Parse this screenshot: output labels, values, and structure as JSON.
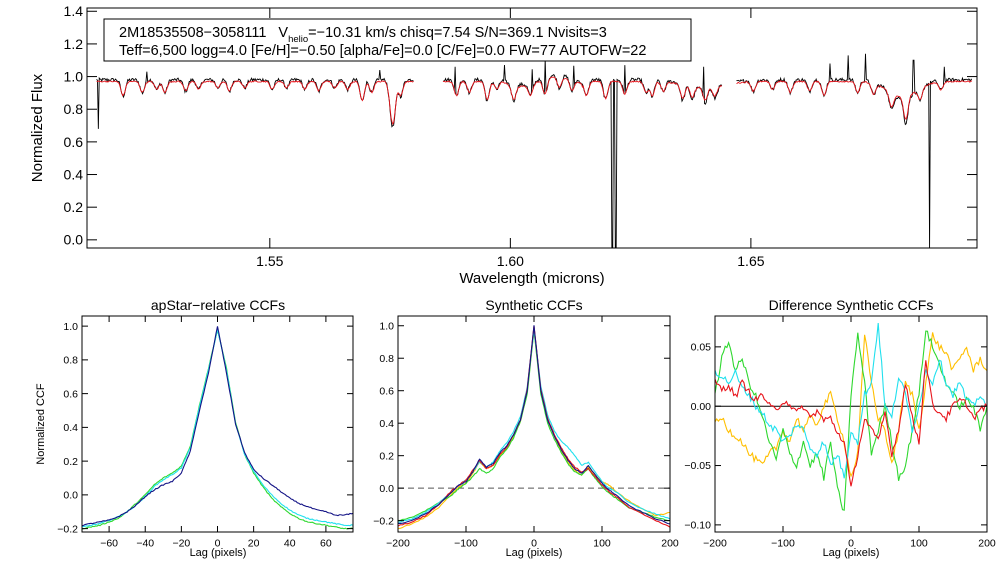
{
  "colors": {
    "black": "#000000",
    "red": "#e8141b",
    "navy": "#141486",
    "cyan": "#20e0ee",
    "green": "#2fd82f",
    "orange": "#ffbf00",
    "ref": "#000000"
  },
  "chart_data": [
    {
      "type": "line",
      "title": "",
      "xlabel": "Wavelength (microns)",
      "ylabel": "Normalized Flux",
      "xlim": [
        1.512,
        1.697
      ],
      "ylim": [
        -0.05,
        1.42
      ],
      "xticks": [
        1.55,
        1.6,
        1.65
      ],
      "xtick_labels": [
        "1.55",
        "1.60",
        "1.65"
      ],
      "yticks": [
        0.0,
        0.2,
        0.4,
        0.6,
        0.8,
        1.0,
        1.2,
        1.4
      ],
      "ytick_labels": [
        "0.0",
        "0.2",
        "0.4",
        "0.6",
        "0.8",
        "1.0",
        "1.2",
        "1.4"
      ],
      "annotation": {
        "star_id": "2M18535508−3058111",
        "v_label": "V",
        "v_sub": "helio",
        "rest_line1": "=−10.31 km/s  chisq=7.54  S/N=369.1  Nvisits=3",
        "line2": "Teff=6,500 logg=4.0 [Fe/H]=−0.50 [alpha/Fe]=0.0 [C/Fe]=0.0 FW=77 AUTOFW=22"
      },
      "segments": [
        {
          "start": 1.514,
          "end": 1.58
        },
        {
          "start": 1.586,
          "end": 1.644
        },
        {
          "start": 1.647,
          "end": 1.696
        }
      ],
      "series": [
        {
          "name": "observed spectrum",
          "color": "black",
          "continuum": 0.98
        },
        {
          "name": "synthetic model",
          "color": "red",
          "continuum": 0.97
        }
      ],
      "absorption_lines": [
        [
          1.5195,
          0.88
        ],
        [
          1.5235,
          0.9
        ],
        [
          1.5265,
          0.92
        ],
        [
          1.5282,
          0.9
        ],
        [
          1.5325,
          0.91
        ],
        [
          1.5352,
          0.92
        ],
        [
          1.5392,
          0.93
        ],
        [
          1.5416,
          0.91
        ],
        [
          1.5448,
          0.93
        ],
        [
          1.5505,
          0.92
        ],
        [
          1.5535,
          0.93
        ],
        [
          1.5573,
          0.92
        ],
        [
          1.5602,
          0.91
        ],
        [
          1.5635,
          0.93
        ],
        [
          1.5662,
          0.92
        ],
        [
          1.5692,
          0.85
        ],
        [
          1.5712,
          0.9
        ],
        [
          1.5752,
          0.82
        ],
        [
          1.5758,
          0.78
        ],
        [
          1.5772,
          0.88
        ],
        [
          1.5888,
          0.88
        ],
        [
          1.5915,
          0.9
        ],
        [
          1.5952,
          0.85
        ],
        [
          1.5972,
          0.92
        ],
        [
          1.6007,
          0.88
        ],
        [
          1.6042,
          0.9
        ],
        [
          1.6072,
          0.87
        ],
        [
          1.6102,
          0.9
        ],
        [
          1.6128,
          0.9
        ],
        [
          1.6158,
          0.88
        ],
        [
          1.6198,
          0.86
        ],
        [
          1.6238,
          0.89
        ],
        [
          1.6282,
          0.9
        ],
        [
          1.6295,
          0.88
        ],
        [
          1.6318,
          0.91
        ],
        [
          1.6358,
          0.88
        ],
        [
          1.6378,
          0.9
        ],
        [
          1.6405,
          0.89
        ],
        [
          1.6425,
          0.91
        ],
        [
          1.6505,
          0.91
        ],
        [
          1.6545,
          0.92
        ],
        [
          1.6582,
          0.9
        ],
        [
          1.6622,
          0.91
        ],
        [
          1.6652,
          0.88
        ],
        [
          1.6722,
          0.9
        ],
        [
          1.6755,
          0.9
        ],
        [
          1.6792,
          0.88
        ],
        [
          1.6822,
          0.82
        ],
        [
          1.6852,
          0.9
        ],
        [
          1.6895,
          0.92
        ]
      ],
      "broad_features": [
        [
          1.6405,
          0.93,
          0.004
        ],
        [
          1.6815,
          0.87,
          0.003
        ]
      ],
      "spikes": [
        [
          1.5885,
          1.06
        ],
        [
          1.5988,
          1.08
        ],
        [
          1.6045,
          1.06
        ],
        [
          1.6072,
          1.09
        ],
        [
          1.6132,
          1.06
        ],
        [
          1.6238,
          1.07
        ],
        [
          1.6402,
          1.06
        ],
        [
          1.6462,
          1.06
        ],
        [
          1.6664,
          1.08
        ],
        [
          1.6702,
          1.13
        ],
        [
          1.6738,
          1.14
        ],
        [
          1.6838,
          1.1
        ],
        [
          1.6902,
          1.06
        ],
        [
          1.5728,
          1.04
        ],
        [
          1.5245,
          1.03
        ]
      ],
      "deep_drops": [
        [
          1.5143,
          0.68
        ],
        [
          1.6212,
          -0.05
        ],
        [
          1.6219,
          -0.05
        ],
        [
          1.6872,
          -0.05
        ]
      ]
    },
    {
      "type": "line",
      "title": "apStar−relative CCFs",
      "xlabel": "Lag (pixels)",
      "ylabel": "Normalized CCF",
      "xlim": [
        -75,
        75
      ],
      "ylim": [
        -0.22,
        1.06
      ],
      "xticks": [
        -60,
        -40,
        -20,
        0,
        20,
        40,
        60
      ],
      "xtick_labels": [
        "−60",
        "−40",
        "−20",
        "0",
        "20",
        "40",
        "60"
      ],
      "yticks": [
        -0.2,
        0.0,
        0.2,
        0.4,
        0.6,
        0.8,
        1.0
      ],
      "ytick_labels": [
        "−0.2",
        "0.0",
        "0.2",
        "0.4",
        "0.6",
        "0.8",
        "1.0"
      ],
      "x": [
        -75,
        -70,
        -65,
        -60,
        -55,
        -50,
        -45,
        -40,
        -35,
        -30,
        -25,
        -20,
        -15,
        -10,
        -5,
        0,
        5,
        10,
        15,
        20,
        25,
        30,
        35,
        40,
        45,
        50,
        55,
        60,
        65,
        70,
        75
      ],
      "series": [
        {
          "name": "navy",
          "color": "navy",
          "values": [
            -0.18,
            -0.17,
            -0.16,
            -0.15,
            -0.13,
            -0.1,
            -0.06,
            -0.01,
            0.03,
            0.06,
            0.08,
            0.13,
            0.26,
            0.5,
            0.72,
            1.0,
            0.72,
            0.42,
            0.25,
            0.15,
            0.1,
            0.06,
            0.02,
            -0.02,
            -0.05,
            -0.07,
            -0.09,
            -0.1,
            -0.12,
            -0.12,
            -0.11
          ]
        },
        {
          "name": "cyan",
          "color": "cyan",
          "values": [
            -0.19,
            -0.18,
            -0.17,
            -0.15,
            -0.13,
            -0.1,
            -0.06,
            -0.01,
            0.05,
            0.09,
            0.12,
            0.16,
            0.28,
            0.52,
            0.74,
            0.98,
            0.74,
            0.42,
            0.24,
            0.14,
            0.06,
            0.0,
            -0.05,
            -0.09,
            -0.12,
            -0.14,
            -0.15,
            -0.16,
            -0.17,
            -0.18,
            -0.18
          ]
        },
        {
          "name": "green",
          "color": "green",
          "values": [
            -0.2,
            -0.19,
            -0.18,
            -0.16,
            -0.14,
            -0.1,
            -0.05,
            0.0,
            0.06,
            0.1,
            0.13,
            0.17,
            0.29,
            0.53,
            0.75,
            0.98,
            0.75,
            0.43,
            0.24,
            0.13,
            0.05,
            -0.02,
            -0.07,
            -0.11,
            -0.14,
            -0.16,
            -0.17,
            -0.18,
            -0.19,
            -0.2,
            -0.2
          ]
        }
      ]
    },
    {
      "type": "line",
      "title": "Synthetic CCFs",
      "xlabel": "Lag (pixels)",
      "ylabel": "",
      "xlim": [
        -200,
        200
      ],
      "ylim": [
        -0.27,
        1.06
      ],
      "xticks": [
        -200,
        -100,
        0,
        100,
        200
      ],
      "xtick_labels": [
        "−200",
        "−100",
        "0",
        "100",
        "200"
      ],
      "yticks": [
        -0.2,
        0.0,
        0.2,
        0.4,
        0.6,
        0.8,
        1.0
      ],
      "ytick_labels": [
        "−0.2",
        "0.0",
        "0.2",
        "0.4",
        "0.6",
        "0.8",
        "1.0"
      ],
      "reference_line": 0.0,
      "x": [
        -200,
        -180,
        -160,
        -140,
        -120,
        -110,
        -100,
        -90,
        -80,
        -70,
        -60,
        -50,
        -40,
        -30,
        -20,
        -10,
        0,
        10,
        20,
        30,
        40,
        50,
        60,
        70,
        80,
        90,
        100,
        110,
        120,
        140,
        160,
        180,
        200
      ],
      "series": [
        {
          "name": "navy",
          "color": "navy",
          "values": [
            -0.22,
            -0.2,
            -0.16,
            -0.1,
            -0.02,
            0.02,
            0.04,
            0.1,
            0.18,
            0.13,
            0.15,
            0.22,
            0.26,
            0.33,
            0.42,
            0.6,
            1.0,
            0.6,
            0.42,
            0.32,
            0.24,
            0.17,
            0.12,
            0.09,
            0.14,
            0.08,
            0.03,
            -0.01,
            -0.04,
            -0.11,
            -0.15,
            -0.19,
            -0.22
          ]
        },
        {
          "name": "red",
          "color": "red",
          "values": [
            -0.23,
            -0.21,
            -0.17,
            -0.1,
            -0.01,
            0.02,
            0.05,
            0.11,
            0.17,
            0.12,
            0.14,
            0.21,
            0.25,
            0.33,
            0.42,
            0.61,
            1.0,
            0.61,
            0.43,
            0.33,
            0.25,
            0.18,
            0.13,
            0.1,
            0.12,
            0.07,
            0.02,
            -0.02,
            -0.05,
            -0.12,
            -0.16,
            -0.2,
            -0.24
          ]
        },
        {
          "name": "cyan",
          "color": "cyan",
          "values": [
            -0.21,
            -0.19,
            -0.15,
            -0.09,
            -0.02,
            0.02,
            0.05,
            0.1,
            0.16,
            0.13,
            0.16,
            0.23,
            0.28,
            0.35,
            0.44,
            0.62,
            0.98,
            0.63,
            0.45,
            0.35,
            0.29,
            0.25,
            0.2,
            0.14,
            0.16,
            0.1,
            0.04,
            0.0,
            -0.02,
            -0.09,
            -0.13,
            -0.16,
            -0.19
          ]
        },
        {
          "name": "green",
          "color": "green",
          "values": [
            -0.2,
            -0.18,
            -0.14,
            -0.09,
            -0.04,
            0.0,
            0.03,
            0.07,
            0.12,
            0.09,
            0.12,
            0.19,
            0.24,
            0.31,
            0.41,
            0.58,
            0.97,
            0.58,
            0.4,
            0.3,
            0.22,
            0.15,
            0.1,
            0.08,
            0.12,
            0.06,
            0.01,
            -0.03,
            -0.06,
            -0.12,
            -0.15,
            -0.18,
            -0.2
          ]
        },
        {
          "name": "orange",
          "color": "orange",
          "values": [
            -0.25,
            -0.22,
            -0.18,
            -0.12,
            -0.03,
            0.01,
            0.03,
            0.09,
            0.16,
            0.12,
            0.14,
            0.2,
            0.25,
            0.32,
            0.41,
            0.59,
            0.99,
            0.6,
            0.42,
            0.32,
            0.23,
            0.16,
            0.11,
            0.08,
            0.13,
            0.08,
            0.04,
            0.02,
            -0.02,
            -0.08,
            -0.13,
            -0.17,
            -0.15
          ]
        }
      ]
    },
    {
      "type": "line",
      "title": "Difference Synthetic CCFs",
      "xlabel": "Lag (pixels)",
      "ylabel": "",
      "xlim": [
        -200,
        200
      ],
      "ylim": [
        -0.106,
        0.076
      ],
      "xticks": [
        -200,
        -100,
        0,
        100,
        200
      ],
      "xtick_labels": [
        "−200",
        "−100",
        "0",
        "100",
        "200"
      ],
      "yticks": [
        -0.1,
        -0.05,
        0.0,
        0.05
      ],
      "ytick_labels": [
        "−0.10",
        "−0.05",
        "0.00",
        "0.05"
      ],
      "reference_line": 0.0,
      "x": [
        -200,
        -190,
        -180,
        -170,
        -160,
        -150,
        -140,
        -130,
        -120,
        -110,
        -100,
        -90,
        -80,
        -70,
        -60,
        -50,
        -40,
        -30,
        -20,
        -10,
        0,
        10,
        20,
        30,
        40,
        50,
        60,
        70,
        80,
        90,
        100,
        110,
        120,
        130,
        140,
        150,
        160,
        170,
        180,
        190,
        200
      ],
      "series": [
        {
          "name": "red",
          "color": "red",
          "values": [
            0.02,
            0.014,
            0.018,
            0.008,
            0.02,
            0.012,
            0.005,
            0.01,
            0.0,
            -0.004,
            0.005,
            0.002,
            -0.006,
            0.0,
            -0.01,
            -0.004,
            -0.012,
            -0.01,
            -0.022,
            -0.03,
            -0.07,
            -0.04,
            -0.01,
            -0.02,
            -0.03,
            -0.005,
            -0.04,
            -0.02,
            0.02,
            -0.01,
            -0.03,
            0.04,
            0.0,
            -0.005,
            -0.01,
            0.0,
            0.005,
            0.002,
            -0.01,
            -0.003,
            0.0
          ]
        },
        {
          "name": "cyan",
          "color": "cyan",
          "values": [
            0.03,
            0.025,
            0.02,
            0.028,
            0.015,
            0.01,
            0.0,
            -0.006,
            -0.016,
            -0.02,
            -0.03,
            -0.025,
            -0.015,
            -0.02,
            -0.035,
            -0.04,
            -0.03,
            -0.05,
            -0.04,
            -0.06,
            -0.02,
            -0.03,
            0.01,
            0.02,
            0.07,
            0.0,
            -0.01,
            0.025,
            0.01,
            -0.02,
            0.0,
            0.03,
            0.02,
            0.04,
            0.02,
            0.01,
            0.02,
            0.005,
            0.0,
            0.01,
            0.0
          ]
        },
        {
          "name": "green",
          "color": "green",
          "values": [
            0.01,
            0.04,
            0.055,
            0.03,
            0.04,
            0.02,
            0.008,
            -0.01,
            -0.03,
            -0.045,
            -0.02,
            -0.04,
            -0.05,
            -0.03,
            -0.05,
            -0.04,
            -0.06,
            -0.03,
            -0.07,
            -0.09,
            0.01,
            0.06,
            0.02,
            -0.04,
            -0.02,
            0.0,
            -0.03,
            -0.06,
            -0.05,
            -0.02,
            0.01,
            0.065,
            0.05,
            0.035,
            0.02,
            0.01,
            0.0,
            0.005,
            0.0,
            -0.02,
            0.0
          ]
        },
        {
          "name": "orange",
          "color": "orange",
          "values": [
            -0.015,
            -0.01,
            -0.02,
            -0.025,
            -0.03,
            -0.04,
            -0.045,
            -0.05,
            -0.04,
            -0.035,
            -0.02,
            -0.03,
            -0.01,
            -0.02,
            -0.01,
            -0.015,
            0.0,
            0.01,
            -0.01,
            -0.03,
            -0.06,
            -0.04,
            0.06,
            0.02,
            -0.01,
            -0.02,
            -0.05,
            -0.02,
            0.02,
            0.01,
            -0.02,
            0.02,
            0.06,
            0.05,
            0.045,
            0.03,
            0.04,
            0.05,
            0.03,
            0.04,
            0.03
          ]
        }
      ]
    }
  ]
}
